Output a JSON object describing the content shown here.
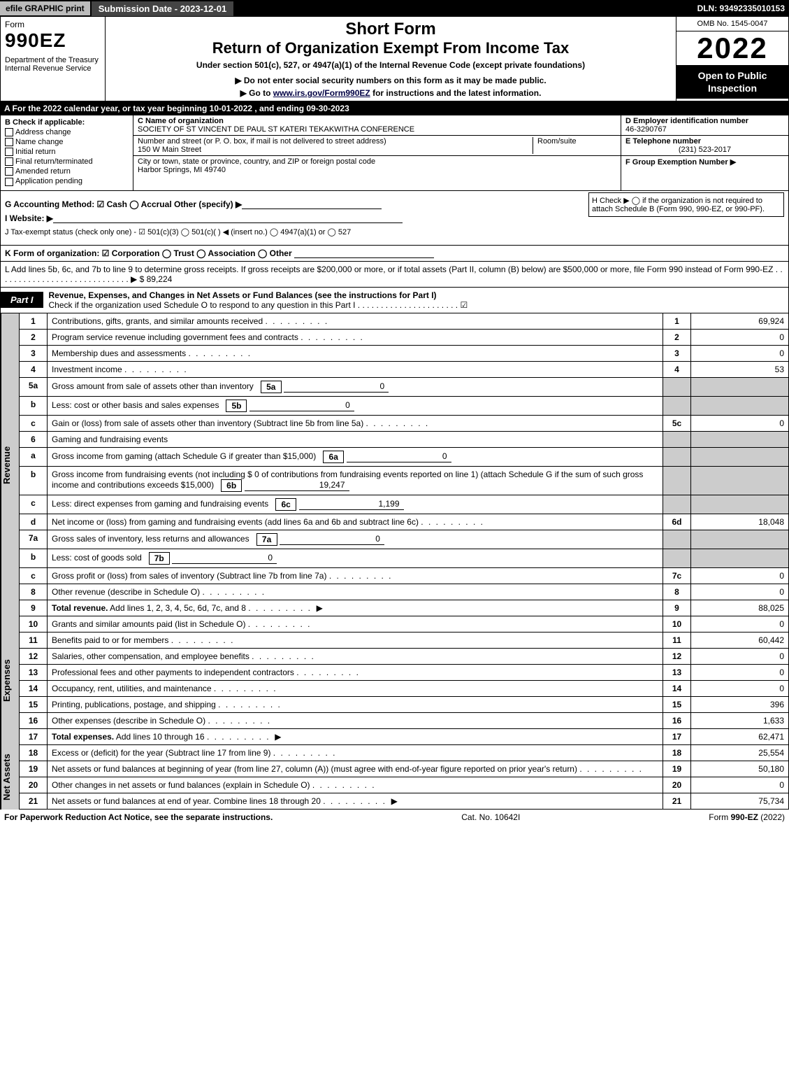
{
  "topbar": {
    "efile": "efile GRAPHIC print",
    "submission": "Submission Date - 2023-12-01",
    "dln": "DLN: 93492335010153"
  },
  "header": {
    "form_word": "Form",
    "form_number": "990EZ",
    "dept": "Department of the Treasury\nInternal Revenue Service",
    "title1": "Short Form",
    "title2": "Return of Organization Exempt From Income Tax",
    "sub": "Under section 501(c), 527, or 4947(a)(1) of the Internal Revenue Code (except private foundations)",
    "sub2": "▶ Do not enter social security numbers on this form as it may be made public.",
    "sub3_pre": "▶ Go to ",
    "sub3_link": "www.irs.gov/Form990EZ",
    "sub3_post": " for instructions and the latest information.",
    "omb": "OMB No. 1545-0047",
    "year": "2022",
    "inspect": "Open to Public Inspection"
  },
  "A": "A  For the 2022 calendar year, or tax year beginning 10-01-2022 , and ending 09-30-2023",
  "B": {
    "label": "B  Check if applicable:",
    "opts": [
      "Address change",
      "Name change",
      "Initial return",
      "Final return/terminated",
      "Amended return",
      "Application pending"
    ]
  },
  "C": {
    "name_label": "C Name of organization",
    "name": "SOCIETY OF ST VINCENT DE PAUL ST KATERI TEKAKWITHA CONFERENCE",
    "street_label": "Number and street (or P. O. box, if mail is not delivered to street address)",
    "street": "150 W Main Street",
    "room_label": "Room/suite",
    "city_label": "City or town, state or province, country, and ZIP or foreign postal code",
    "city": "Harbor Springs, MI  49740"
  },
  "D": {
    "label": "D Employer identification number",
    "value": "46-3290767"
  },
  "E": {
    "label": "E Telephone number",
    "value": "(231) 523-2017"
  },
  "F": {
    "label": "F Group Exemption Number  ▶",
    "value": ""
  },
  "G": "G Accounting Method:   ☑ Cash   ◯ Accrual   Other (specify) ▶",
  "H": "H   Check ▶  ◯  if the organization is not required to attach Schedule B (Form 990, 990-EZ, or 990-PF).",
  "I": "I Website: ▶",
  "J": "J Tax-exempt status (check only one) -  ☑ 501(c)(3)  ◯ 501(c)(  ) ◀ (insert no.)  ◯ 4947(a)(1) or  ◯ 527",
  "K": "K Form of organization:   ☑ Corporation   ◯ Trust   ◯ Association   ◯ Other",
  "L": {
    "text": "L Add lines 5b, 6c, and 7b to line 9 to determine gross receipts. If gross receipts are $200,000 or more, or if total assets (Part II, column (B) below) are $500,000 or more, file Form 990 instead of Form 990-EZ . . . . . . . . . . . . . . . . . . . . . . . . . . . . . ▶ $",
    "value": "89,224"
  },
  "part1": {
    "label": "Part I",
    "title": "Revenue, Expenses, and Changes in Net Assets or Fund Balances (see the instructions for Part I)",
    "check": "Check if the organization used Schedule O to respond to any question in this Part I . . . . . . . . . . . . . . . . . . . . . .  ☑"
  },
  "sections": {
    "revenue": "Revenue",
    "expenses": "Expenses",
    "netassets": "Net Assets"
  },
  "rows": [
    {
      "n": "1",
      "desc": "Contributions, gifts, grants, and similar amounts received",
      "ref": "1",
      "val": "69,924"
    },
    {
      "n": "2",
      "desc": "Program service revenue including government fees and contracts",
      "ref": "2",
      "val": "0"
    },
    {
      "n": "3",
      "desc": "Membership dues and assessments",
      "ref": "3",
      "val": "0"
    },
    {
      "n": "4",
      "desc": "Investment income",
      "ref": "4",
      "val": "53"
    },
    {
      "n": "5a",
      "desc": "Gross amount from sale of assets other than inventory",
      "inline_ref": "5a",
      "inline_val": "0",
      "shade": true
    },
    {
      "n": "b",
      "desc": "Less: cost or other basis and sales expenses",
      "inline_ref": "5b",
      "inline_val": "0",
      "shade": true
    },
    {
      "n": "c",
      "desc": "Gain or (loss) from sale of assets other than inventory (Subtract line 5b from line 5a)",
      "ref": "5c",
      "val": "0"
    },
    {
      "n": "6",
      "desc": "Gaming and fundraising events",
      "shade": true,
      "noval": true
    },
    {
      "n": "a",
      "desc": "Gross income from gaming (attach Schedule G if greater than $15,000)",
      "inline_ref": "6a",
      "inline_val": "0",
      "shade": true
    },
    {
      "n": "b",
      "desc": "Gross income from fundraising events (not including $ 0   of contributions from fundraising events reported on line 1) (attach Schedule G if the sum of such gross income and contributions exceeds $15,000)",
      "inline_ref": "6b",
      "inline_val": "19,247",
      "shade": true
    },
    {
      "n": "c",
      "desc": "Less: direct expenses from gaming and fundraising events",
      "inline_ref": "6c",
      "inline_val": "1,199",
      "shade": true
    },
    {
      "n": "d",
      "desc": "Net income or (loss) from gaming and fundraising events (add lines 6a and 6b and subtract line 6c)",
      "ref": "6d",
      "val": "18,048"
    },
    {
      "n": "7a",
      "desc": "Gross sales of inventory, less returns and allowances",
      "inline_ref": "7a",
      "inline_val": "0",
      "shade": true
    },
    {
      "n": "b",
      "desc": "Less: cost of goods sold",
      "inline_ref": "7b",
      "inline_val": "0",
      "shade": true
    },
    {
      "n": "c",
      "desc": "Gross profit or (loss) from sales of inventory (Subtract line 7b from line 7a)",
      "ref": "7c",
      "val": "0"
    },
    {
      "n": "8",
      "desc": "Other revenue (describe in Schedule O)",
      "ref": "8",
      "val": "0"
    },
    {
      "n": "9",
      "desc": "Total revenue. Add lines 1, 2, 3, 4, 5c, 6d, 7c, and 8",
      "ref": "9",
      "val": "88,025",
      "bold": true,
      "arrow": true
    }
  ],
  "exp_rows": [
    {
      "n": "10",
      "desc": "Grants and similar amounts paid (list in Schedule O)",
      "ref": "10",
      "val": "0"
    },
    {
      "n": "11",
      "desc": "Benefits paid to or for members",
      "ref": "11",
      "val": "60,442"
    },
    {
      "n": "12",
      "desc": "Salaries, other compensation, and employee benefits",
      "ref": "12",
      "val": "0"
    },
    {
      "n": "13",
      "desc": "Professional fees and other payments to independent contractors",
      "ref": "13",
      "val": "0"
    },
    {
      "n": "14",
      "desc": "Occupancy, rent, utilities, and maintenance",
      "ref": "14",
      "val": "0"
    },
    {
      "n": "15",
      "desc": "Printing, publications, postage, and shipping",
      "ref": "15",
      "val": "396"
    },
    {
      "n": "16",
      "desc": "Other expenses (describe in Schedule O)",
      "ref": "16",
      "val": "1,633"
    },
    {
      "n": "17",
      "desc": "Total expenses. Add lines 10 through 16",
      "ref": "17",
      "val": "62,471",
      "bold": true,
      "arrow": true
    }
  ],
  "na_rows": [
    {
      "n": "18",
      "desc": "Excess or (deficit) for the year (Subtract line 17 from line 9)",
      "ref": "18",
      "val": "25,554"
    },
    {
      "n": "19",
      "desc": "Net assets or fund balances at beginning of year (from line 27, column (A)) (must agree with end-of-year figure reported on prior year's return)",
      "ref": "19",
      "val": "50,180"
    },
    {
      "n": "20",
      "desc": "Other changes in net assets or fund balances (explain in Schedule O)",
      "ref": "20",
      "val": "0"
    },
    {
      "n": "21",
      "desc": "Net assets or fund balances at end of year. Combine lines 18 through 20",
      "ref": "21",
      "val": "75,734",
      "arrow": true
    }
  ],
  "footer": {
    "left": "For Paperwork Reduction Act Notice, see the separate instructions.",
    "center": "Cat. No. 10642I",
    "right": "Form 990-EZ (2022)"
  }
}
